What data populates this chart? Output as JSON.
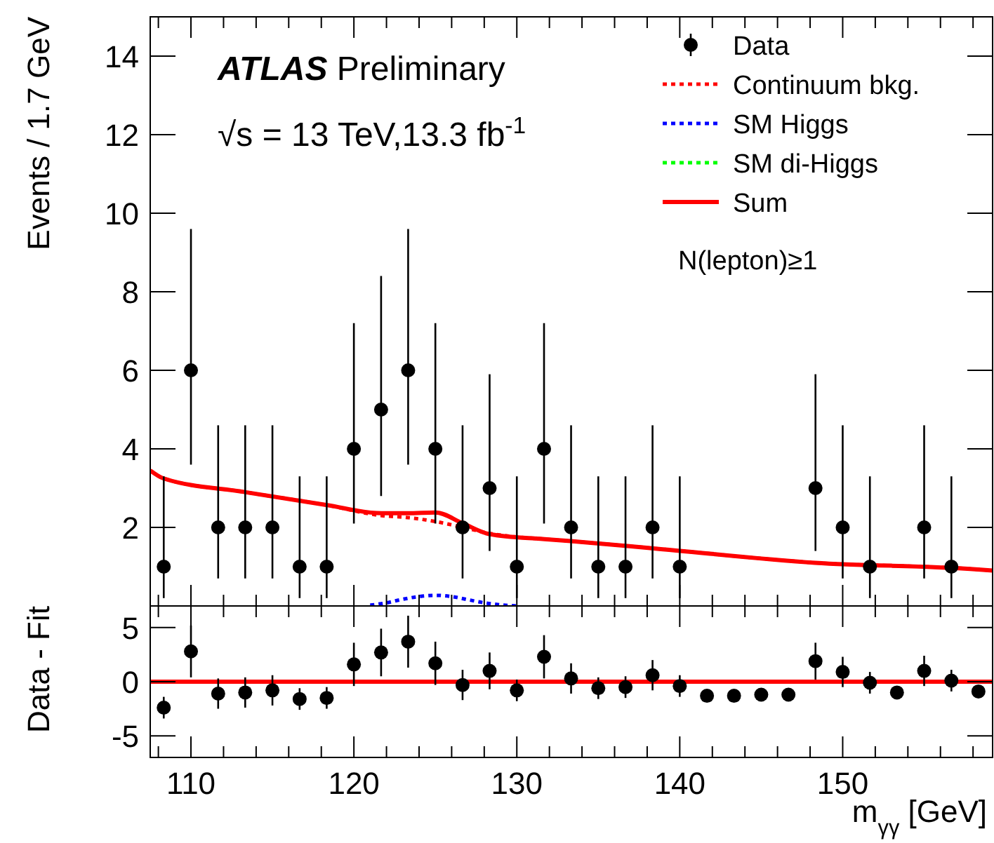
{
  "chart_data": [
    {
      "type": "scatter",
      "ylabel": "Events / 1.7 GeV",
      "annotations": [
        "ATLAS Preliminary",
        "√s = 13 TeV,13.3 fb$^{-1}$",
        "N(lepton)≥1"
      ],
      "xlim": [
        107.5,
        159.2
      ],
      "xticks": [
        {
          "value": 108,
          "label": null
        },
        110,
        {
          "value": 112,
          "label": null
        },
        {
          "value": 114,
          "label": null
        },
        {
          "value": 116,
          "label": null
        },
        {
          "value": 118,
          "label": null
        },
        120,
        {
          "value": 122,
          "label": null
        },
        {
          "value": 124,
          "label": null
        },
        {
          "value": 126,
          "label": null
        },
        {
          "value": 128,
          "label": null
        },
        130,
        {
          "value": 132,
          "label": null
        },
        {
          "value": 134,
          "label": null
        },
        {
          "value": 136,
          "label": null
        },
        {
          "value": 138,
          "label": null
        },
        140,
        {
          "value": 142,
          "label": null
        },
        {
          "value": 144,
          "label": null
        },
        {
          "value": 146,
          "label": null
        },
        {
          "value": 148,
          "label": null
        },
        150,
        {
          "value": 152,
          "label": null
        },
        {
          "value": 154,
          "label": null
        },
        {
          "value": 156,
          "label": null
        },
        {
          "value": 158,
          "label": null
        }
      ],
      "ylim": [
        0,
        15
      ],
      "yticks": [
        2,
        4,
        6,
        8,
        10,
        12,
        14
      ],
      "tick_labels": "y",
      "grid": false,
      "legend": "top right",
      "series": [
        {
          "name": "Data",
          "color": "#000000",
          "marker": "circle",
          "x": [
            108.33,
            110,
            111.67,
            113.33,
            115,
            116.67,
            118.33,
            120,
            121.67,
            123.33,
            125,
            126.67,
            128.33,
            130,
            131.67,
            133.33,
            135,
            136.67,
            138.33,
            140,
            148.33,
            150,
            151.67,
            155,
            156.67
          ],
          "values": [
            1,
            6,
            2,
            2,
            2,
            1,
            1,
            4,
            5,
            6,
            4,
            2,
            3,
            1,
            4,
            2,
            1,
            1,
            2,
            1,
            3,
            2,
            1,
            2,
            1
          ],
          "errors": [
            [
              0.2,
              3.3
            ],
            [
              3.6,
              9.6
            ],
            [
              0.7,
              4.6
            ],
            [
              0.7,
              4.6
            ],
            [
              0.7,
              4.6
            ],
            [
              0.2,
              3.3
            ],
            [
              0.2,
              3.3
            ],
            [
              2.1,
              7.2
            ],
            [
              2.8,
              8.4
            ],
            [
              3.6,
              9.6
            ],
            [
              2.1,
              7.2
            ],
            [
              0.7,
              4.6
            ],
            [
              1.4,
              5.9
            ],
            [
              0.2,
              3.3
            ],
            [
              2.1,
              7.2
            ],
            [
              0.7,
              4.6
            ],
            [
              0.2,
              3.3
            ],
            [
              0.2,
              3.3
            ],
            [
              0.7,
              4.6
            ],
            [
              0.2,
              3.3
            ],
            [
              1.4,
              5.9
            ],
            [
              0.7,
              4.6
            ],
            [
              0.2,
              3.3
            ],
            [
              0.7,
              4.6
            ],
            [
              0.2,
              3.3
            ]
          ]
        },
        {
          "name": "Continuum bkg.",
          "type": "line",
          "line_style": "dotted",
          "color": "#ff0000",
          "x": [
            107.5,
            108.3,
            113.3,
            118.3,
            121.7,
            123.3,
            125,
            126.7,
            128.3,
            131.7,
            133.3,
            138.3,
            148.3,
            158.3,
            159.2
          ],
          "values": [
            3.45,
            3.25,
            2.9,
            2.57,
            2.3,
            2.25,
            2.15,
            2.0,
            1.85,
            1.7,
            1.65,
            1.47,
            1.1,
            0.93,
            0.9
          ]
        },
        {
          "name": "SM Higgs",
          "type": "line",
          "line_style": "dotted",
          "color": "#0000ff",
          "x": [
            121,
            122,
            123,
            124,
            125,
            126,
            127,
            128,
            129,
            130
          ],
          "values": [
            0.02,
            0.08,
            0.17,
            0.24,
            0.27,
            0.24,
            0.16,
            0.08,
            0.03,
            0
          ]
        },
        {
          "name": "SM di-Higgs",
          "type": "line",
          "line_style": "dotted",
          "color": "#00ff00"
        },
        {
          "name": "Sum",
          "type": "line",
          "line_style": "solid",
          "color": "#ff0000",
          "x": [
            107.5,
            108.3,
            113.3,
            118.3,
            121.7,
            123.3,
            125,
            126.7,
            128.3,
            131.7,
            133.3,
            138.3,
            148.3,
            158.3,
            159.2
          ],
          "values": [
            3.45,
            3.25,
            2.9,
            2.57,
            2.36,
            2.36,
            2.38,
            2.1,
            1.83,
            1.7,
            1.65,
            1.47,
            1.1,
            0.93,
            0.9
          ]
        }
      ]
    },
    {
      "type": "scatter",
      "xlabel": "m$_{γγ}$ [GeV]",
      "ylabel": "Data - Fit",
      "color": "#000000",
      "marker": "circle",
      "x": [
        108.33,
        110,
        111.67,
        113.33,
        115,
        116.67,
        118.33,
        120,
        121.67,
        123.33,
        125,
        126.67,
        128.33,
        130,
        131.67,
        133.33,
        135,
        136.67,
        138.33,
        140,
        141.67,
        143.33,
        145,
        146.67,
        148.33,
        150,
        151.67,
        153.33,
        155,
        156.67,
        158.33
      ],
      "values": [
        -2.4,
        2.8,
        -1.1,
        -1.0,
        -0.8,
        -1.6,
        -1.5,
        1.6,
        2.7,
        3.7,
        1.7,
        -0.3,
        1.0,
        -0.8,
        2.3,
        0.3,
        -0.6,
        -0.5,
        0.6,
        -0.4,
        -1.3,
        -1.3,
        -1.2,
        -1.2,
        1.9,
        0.9,
        -0.1,
        -1.0,
        1.0,
        0.1,
        -0.9
      ],
      "errors": [
        1,
        2.4,
        1.4,
        1.4,
        1.4,
        1,
        1,
        2,
        2.2,
        2.4,
        2,
        1.4,
        1.7,
        1,
        2,
        1.4,
        1,
        1,
        1.4,
        1,
        null,
        null,
        null,
        null,
        1.7,
        1.4,
        1,
        null,
        1.4,
        1,
        null
      ],
      "xlim": [
        107.5,
        159.2
      ],
      "xticks": [
        {
          "value": 108,
          "label": null
        },
        110,
        {
          "value": 112,
          "label": null
        },
        {
          "value": 114,
          "label": null
        },
        {
          "value": 116,
          "label": null
        },
        {
          "value": 118,
          "label": null
        },
        120,
        {
          "value": 122,
          "label": null
        },
        {
          "value": 124,
          "label": null
        },
        {
          "value": 126,
          "label": null
        },
        {
          "value": 128,
          "label": null
        },
        130,
        {
          "value": 132,
          "label": null
        },
        {
          "value": 134,
          "label": null
        },
        {
          "value": 136,
          "label": null
        },
        {
          "value": 138,
          "label": null
        },
        140,
        {
          "value": 142,
          "label": null
        },
        {
          "value": 144,
          "label": null
        },
        {
          "value": 146,
          "label": null
        },
        {
          "value": 148,
          "label": null
        },
        150,
        {
          "value": 152,
          "label": null
        },
        {
          "value": 154,
          "label": null
        },
        {
          "value": 156,
          "label": null
        },
        {
          "value": 158,
          "label": null
        }
      ],
      "ylim": [
        -7,
        7
      ],
      "yticks": [
        -5,
        0,
        5
      ],
      "grid": false,
      "ref_lines": [
        {
          "axis": "y",
          "value": 0,
          "color": "#ff0000",
          "line_style": "solid"
        }
      ]
    }
  ]
}
